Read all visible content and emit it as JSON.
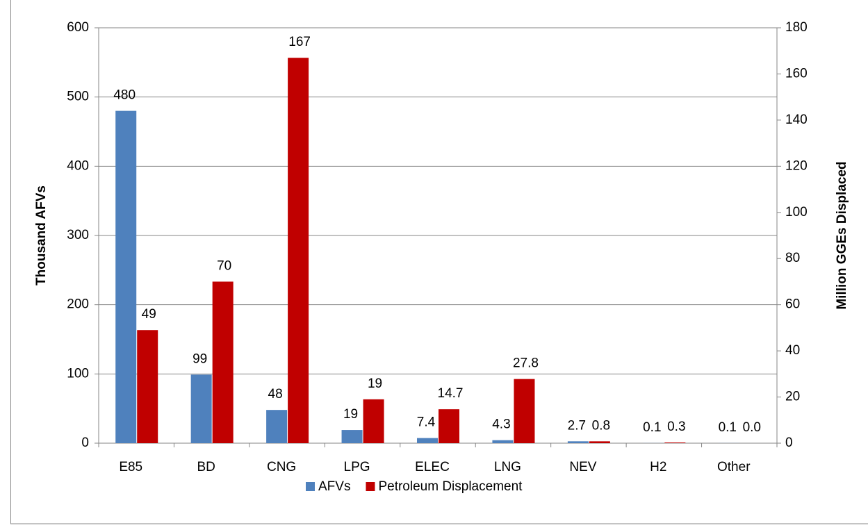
{
  "chart_data": {
    "type": "bar",
    "categories": [
      "E85",
      "BD",
      "CNG",
      "LPG",
      "ELEC",
      "LNG",
      "NEV",
      "H2",
      "Other"
    ],
    "series": [
      {
        "name": "AFVs",
        "color": "#4f81bd",
        "values": [
          480,
          99,
          48,
          19,
          7.4,
          4.3,
          2.7,
          0.1,
          0.1
        ]
      },
      {
        "name": "Petroleum Displacement",
        "color": "#c00000",
        "axis": "y2",
        "values": [
          49,
          70,
          167,
          19,
          14.7,
          27.8,
          0.8,
          0.3,
          0.0
        ],
        "value_labels": [
          "49",
          "70",
          "167",
          "19",
          "14.7",
          "27.8",
          "0.8",
          "0.3",
          "0.0"
        ]
      }
    ],
    "ylabel": "Thousand AFVs",
    "y2label": "Million GGEs Displaced",
    "ylim": [
      0,
      600
    ],
    "yticks": [
      0,
      100,
      200,
      300,
      400,
      500,
      600
    ],
    "y2lim": [
      0,
      180
    ],
    "y2ticks": [
      0,
      20,
      40,
      60,
      80,
      100,
      120,
      140,
      160,
      180
    ],
    "grid": true,
    "legend": "bottom"
  }
}
